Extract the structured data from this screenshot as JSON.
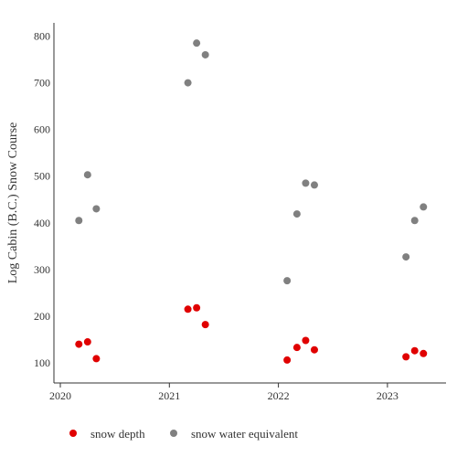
{
  "chart_data": {
    "type": "scatter",
    "title": "",
    "xlabel": "",
    "ylabel": "Log Cabin (B.C.) Snow Course",
    "xlim": [
      2020.0,
      2023.35
    ],
    "ylim": [
      55,
      835
    ],
    "x_ticks": [
      "2020",
      "2021",
      "2022",
      "2023"
    ],
    "y_ticks": [
      "100",
      "200",
      "300",
      "400",
      "500",
      "600",
      "700",
      "800"
    ],
    "grid": false,
    "legend_position": "bottom-left",
    "series": [
      {
        "name": "snow depth",
        "color": "#e00000",
        "points": [
          {
            "x": 2020.17,
            "y": 140
          },
          {
            "x": 2020.25,
            "y": 145
          },
          {
            "x": 2020.33,
            "y": 109
          },
          {
            "x": 2021.17,
            "y": 215
          },
          {
            "x": 2021.25,
            "y": 218
          },
          {
            "x": 2021.33,
            "y": 182
          },
          {
            "x": 2022.08,
            "y": 106
          },
          {
            "x": 2022.17,
            "y": 133
          },
          {
            "x": 2022.25,
            "y": 148
          },
          {
            "x": 2022.33,
            "y": 128
          },
          {
            "x": 2023.17,
            "y": 113
          },
          {
            "x": 2023.25,
            "y": 126
          },
          {
            "x": 2023.33,
            "y": 120
          }
        ]
      },
      {
        "name": "snow water equivalent",
        "color": "#808080",
        "points": [
          {
            "x": 2020.17,
            "y": 405
          },
          {
            "x": 2020.25,
            "y": 503
          },
          {
            "x": 2020.33,
            "y": 430
          },
          {
            "x": 2021.17,
            "y": 700
          },
          {
            "x": 2021.25,
            "y": 785
          },
          {
            "x": 2021.33,
            "y": 760
          },
          {
            "x": 2022.08,
            "y": 276
          },
          {
            "x": 2022.17,
            "y": 419
          },
          {
            "x": 2022.25,
            "y": 485
          },
          {
            "x": 2022.33,
            "y": 481
          },
          {
            "x": 2023.17,
            "y": 327
          },
          {
            "x": 2023.25,
            "y": 405
          },
          {
            "x": 2023.33,
            "y": 434
          }
        ]
      }
    ]
  }
}
